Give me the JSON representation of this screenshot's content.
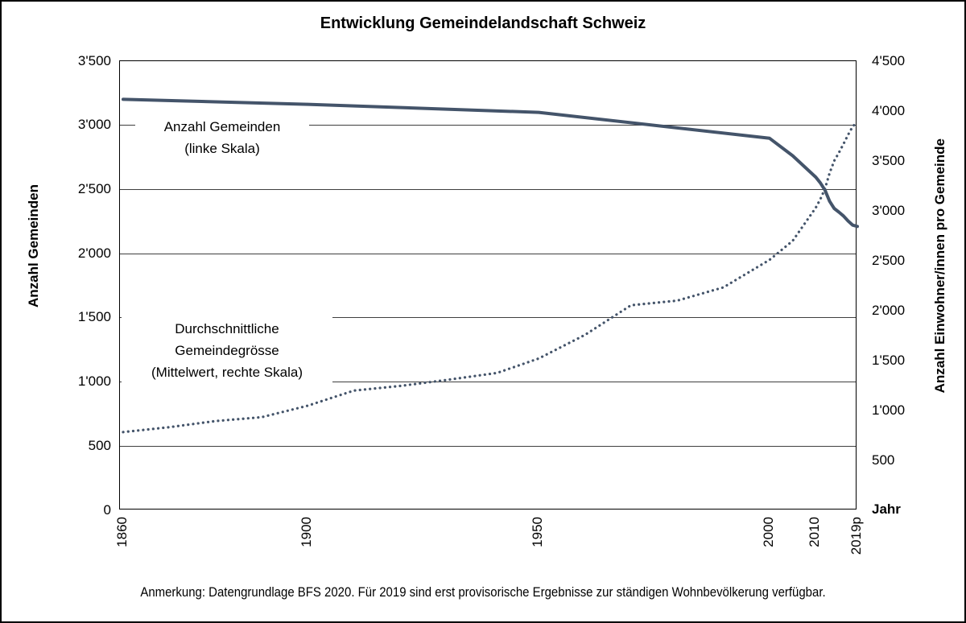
{
  "title": "Entwicklung Gemeindelandschaft Schweiz",
  "note": "Anmerkung: Datengrundlage BFS 2020. Für 2019 sind erst provisorische Ergebnisse zur ständigen Wohnbevölkerung verfügbar.",
  "colors": {
    "line": "#44546A",
    "grid": "#3f3f3f",
    "axis": "#000000",
    "background": "#ffffff"
  },
  "callout_left": {
    "line1": "Anzahl Gemeinden",
    "line2": "(linke Skala)"
  },
  "callout_right": {
    "line1": "Durchschnittliche",
    "line2": "Gemeindegrösse",
    "line3": "(Mittelwert, rechte Skala)"
  },
  "chart_data": {
    "type": "line",
    "title": "Entwicklung Gemeindelandschaft Schweiz",
    "grid": "horizontal gridlines every 500 units of the left scale",
    "legend_position": "inline annotations on plot",
    "x_axis": {
      "label": "Jahr",
      "range": [
        1860,
        2019
      ],
      "tick_years": [
        1860,
        1900,
        1950,
        2000,
        2010,
        2019
      ],
      "tick_labels": [
        "1860",
        "1900",
        "1950",
        "2000",
        "2010",
        "2019p"
      ]
    },
    "left_axis": {
      "label": "Anzahl Gemeinden",
      "range": [
        0,
        3500
      ],
      "tick_step": 500,
      "tick_labels": [
        "3'500",
        "3'000",
        "2'500",
        "2'000",
        "1'500",
        "1'000",
        "500",
        "0"
      ]
    },
    "right_axis": {
      "label": "Anzahl Einwohner/innen pro Gemeinde",
      "range": [
        0,
        4500
      ],
      "tick_step": 500,
      "tick_labels": [
        "4'500",
        "4'000",
        "3'500",
        "3'000",
        "2'500",
        "2'000",
        "1'500",
        "1'000",
        "500"
      ]
    },
    "series": [
      {
        "id": "gemeinden",
        "name": "Anzahl Gemeinden (linke Skala)",
        "axis": "left",
        "style": "solid",
        "points": [
          [
            1860,
            3203
          ],
          [
            1900,
            3164
          ],
          [
            1950,
            3101
          ],
          [
            2000,
            2899
          ],
          [
            2005,
            2763
          ],
          [
            2010,
            2596
          ],
          [
            2011,
            2551
          ],
          [
            2012,
            2495
          ],
          [
            2013,
            2408
          ],
          [
            2014,
            2352
          ],
          [
            2015,
            2324
          ],
          [
            2016,
            2294
          ],
          [
            2017,
            2255
          ],
          [
            2018,
            2222
          ],
          [
            2019,
            2212
          ]
        ]
      },
      {
        "id": "gemeindegroesse",
        "name": "Durchschnittliche Gemeindegrösse (Mittelwert, rechte Skala)",
        "axis": "right",
        "style": "dotted",
        "points": [
          [
            1860,
            784
          ],
          [
            1870,
            833
          ],
          [
            1880,
            894
          ],
          [
            1890,
            933
          ],
          [
            1900,
            1048
          ],
          [
            1910,
            1200
          ],
          [
            1920,
            1246
          ],
          [
            1930,
            1306
          ],
          [
            1941,
            1377
          ],
          [
            1950,
            1521
          ],
          [
            1960,
            1757
          ],
          [
            1970,
            2055
          ],
          [
            1980,
            2101
          ],
          [
            1990,
            2234
          ],
          [
            2000,
            2510
          ],
          [
            2005,
            2700
          ],
          [
            2010,
            3032
          ],
          [
            2011,
            3118
          ],
          [
            2012,
            3222
          ],
          [
            2013,
            3380
          ],
          [
            2014,
            3502
          ],
          [
            2015,
            3583
          ],
          [
            2016,
            3670
          ],
          [
            2017,
            3762
          ],
          [
            2018,
            3846
          ],
          [
            2019,
            3891
          ]
        ]
      }
    ]
  }
}
